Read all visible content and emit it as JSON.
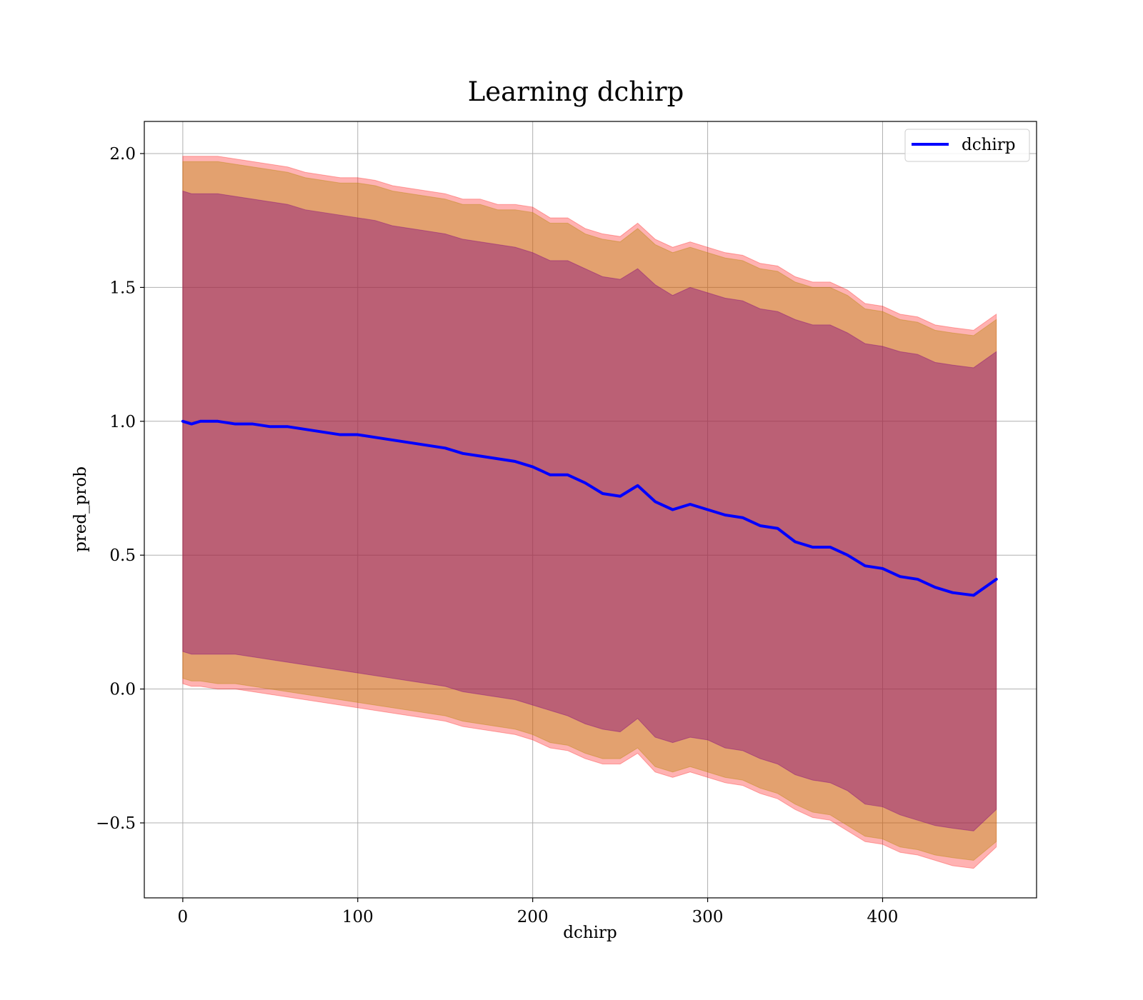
{
  "chart_data": {
    "type": "line",
    "title": "Learning dchirp",
    "xlabel": "dchirp",
    "ylabel": "pred_prob",
    "xlim": [
      -22,
      488
    ],
    "ylim": [
      -0.78,
      2.12
    ],
    "xticks": [
      0,
      100,
      200,
      300,
      400
    ],
    "yticks": [
      -0.5,
      0.0,
      0.5,
      1.0,
      1.5,
      2.0
    ],
    "xtick_labels": [
      "0",
      "100",
      "200",
      "300",
      "400"
    ],
    "ytick_labels": [
      "−0.5",
      "0.0",
      "0.5",
      "1.0",
      "1.5",
      "2.0"
    ],
    "grid": true,
    "legend": {
      "position": "top-right",
      "entries": [
        "dchirp"
      ]
    },
    "colors": {
      "mean_line": "#0000ff",
      "band_outer": "#ff0000",
      "band_middle": "#b8860b",
      "band_inner": "#800080"
    },
    "series": [
      {
        "name": "dchirp",
        "x": [
          0,
          5,
          10,
          20,
          30,
          40,
          50,
          60,
          70,
          80,
          90,
          100,
          110,
          120,
          130,
          140,
          150,
          160,
          170,
          180,
          190,
          200,
          210,
          220,
          230,
          240,
          250,
          260,
          270,
          280,
          290,
          300,
          310,
          320,
          330,
          340,
          350,
          360,
          370,
          380,
          390,
          400,
          410,
          420,
          430,
          440,
          452,
          465
        ],
        "mean": [
          1.0,
          0.99,
          1.0,
          1.0,
          0.99,
          0.99,
          0.98,
          0.98,
          0.97,
          0.96,
          0.95,
          0.95,
          0.94,
          0.93,
          0.92,
          0.91,
          0.9,
          0.88,
          0.87,
          0.86,
          0.85,
          0.83,
          0.8,
          0.8,
          0.77,
          0.73,
          0.72,
          0.76,
          0.7,
          0.67,
          0.69,
          0.67,
          0.65,
          0.64,
          0.61,
          0.6,
          0.55,
          0.53,
          0.53,
          0.5,
          0.46,
          0.45,
          0.42,
          0.41,
          0.38,
          0.36,
          0.35,
          0.41
        ]
      }
    ],
    "bands": [
      {
        "name": "outer",
        "upper": [
          1.99,
          1.99,
          1.99,
          1.99,
          1.98,
          1.97,
          1.96,
          1.95,
          1.93,
          1.92,
          1.91,
          1.91,
          1.9,
          1.88,
          1.87,
          1.86,
          1.85,
          1.83,
          1.83,
          1.81,
          1.81,
          1.8,
          1.76,
          1.76,
          1.72,
          1.7,
          1.69,
          1.74,
          1.68,
          1.65,
          1.67,
          1.65,
          1.63,
          1.62,
          1.59,
          1.58,
          1.54,
          1.52,
          1.52,
          1.49,
          1.44,
          1.43,
          1.4,
          1.39,
          1.36,
          1.35,
          1.34,
          1.4
        ],
        "lower": [
          0.02,
          0.01,
          0.01,
          0.0,
          0.0,
          -0.01,
          -0.02,
          -0.03,
          -0.04,
          -0.05,
          -0.06,
          -0.07,
          -0.08,
          -0.09,
          -0.1,
          -0.11,
          -0.12,
          -0.14,
          -0.15,
          -0.16,
          -0.17,
          -0.19,
          -0.22,
          -0.23,
          -0.26,
          -0.28,
          -0.28,
          -0.24,
          -0.31,
          -0.33,
          -0.31,
          -0.33,
          -0.35,
          -0.36,
          -0.39,
          -0.41,
          -0.45,
          -0.48,
          -0.49,
          -0.53,
          -0.57,
          -0.58,
          -0.61,
          -0.62,
          -0.64,
          -0.66,
          -0.67,
          -0.59
        ]
      },
      {
        "name": "middle",
        "upper": [
          1.97,
          1.97,
          1.97,
          1.97,
          1.96,
          1.95,
          1.94,
          1.93,
          1.91,
          1.9,
          1.89,
          1.89,
          1.88,
          1.86,
          1.85,
          1.84,
          1.83,
          1.81,
          1.81,
          1.79,
          1.79,
          1.78,
          1.74,
          1.74,
          1.7,
          1.68,
          1.67,
          1.72,
          1.66,
          1.63,
          1.65,
          1.63,
          1.61,
          1.6,
          1.57,
          1.56,
          1.52,
          1.5,
          1.5,
          1.47,
          1.42,
          1.41,
          1.38,
          1.37,
          1.34,
          1.33,
          1.32,
          1.38
        ],
        "lower": [
          0.04,
          0.03,
          0.03,
          0.02,
          0.02,
          0.01,
          0.0,
          -0.01,
          -0.02,
          -0.03,
          -0.04,
          -0.05,
          -0.06,
          -0.07,
          -0.08,
          -0.09,
          -0.1,
          -0.12,
          -0.13,
          -0.14,
          -0.15,
          -0.17,
          -0.2,
          -0.21,
          -0.24,
          -0.26,
          -0.26,
          -0.22,
          -0.29,
          -0.31,
          -0.29,
          -0.31,
          -0.33,
          -0.34,
          -0.37,
          -0.39,
          -0.43,
          -0.46,
          -0.47,
          -0.51,
          -0.55,
          -0.56,
          -0.59,
          -0.6,
          -0.62,
          -0.63,
          -0.64,
          -0.57
        ]
      },
      {
        "name": "inner",
        "upper": [
          1.86,
          1.85,
          1.85,
          1.85,
          1.84,
          1.83,
          1.82,
          1.81,
          1.79,
          1.78,
          1.77,
          1.76,
          1.75,
          1.73,
          1.72,
          1.71,
          1.7,
          1.68,
          1.67,
          1.66,
          1.65,
          1.63,
          1.6,
          1.6,
          1.57,
          1.54,
          1.53,
          1.57,
          1.51,
          1.47,
          1.5,
          1.48,
          1.46,
          1.45,
          1.42,
          1.41,
          1.38,
          1.36,
          1.36,
          1.33,
          1.29,
          1.28,
          1.26,
          1.25,
          1.22,
          1.21,
          1.2,
          1.26
        ],
        "lower": [
          0.14,
          0.13,
          0.13,
          0.13,
          0.13,
          0.12,
          0.11,
          0.1,
          0.09,
          0.08,
          0.07,
          0.06,
          0.05,
          0.04,
          0.03,
          0.02,
          0.01,
          -0.01,
          -0.02,
          -0.03,
          -0.04,
          -0.06,
          -0.08,
          -0.1,
          -0.13,
          -0.15,
          -0.16,
          -0.11,
          -0.18,
          -0.2,
          -0.18,
          -0.19,
          -0.22,
          -0.23,
          -0.26,
          -0.28,
          -0.32,
          -0.34,
          -0.35,
          -0.38,
          -0.43,
          -0.44,
          -0.47,
          -0.49,
          -0.51,
          -0.52,
          -0.53,
          -0.45
        ]
      }
    ]
  }
}
